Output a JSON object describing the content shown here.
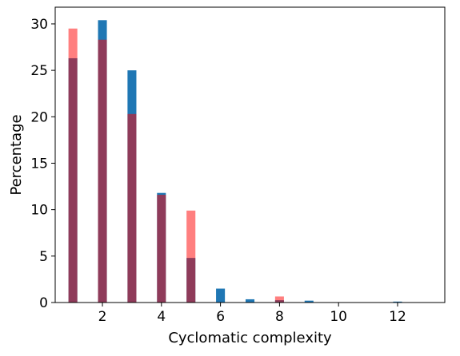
{
  "chart_data": {
    "type": "bar",
    "xlabel": "Cyclomatic complexity",
    "ylabel": "Percentage",
    "xlim": [
      0.4,
      13.6
    ],
    "ylim": [
      0,
      31.8
    ],
    "xticks": [
      2,
      4,
      6,
      8,
      10,
      12
    ],
    "yticks": [
      0,
      5,
      10,
      15,
      20,
      25,
      30
    ],
    "grid": false,
    "legend": "none",
    "bar_width": 0.3,
    "series": [
      {
        "color": "#1f77b4",
        "opacity": 1.0,
        "points": [
          {
            "x": 1,
            "y": 26.3
          },
          {
            "x": 2,
            "y": 30.4
          },
          {
            "x": 3,
            "y": 25.0
          },
          {
            "x": 4,
            "y": 11.8
          },
          {
            "x": 5,
            "y": 4.8
          },
          {
            "x": 6,
            "y": 1.5
          },
          {
            "x": 7,
            "y": 0.35
          },
          {
            "x": 8,
            "y": 0.25
          },
          {
            "x": 9,
            "y": 0.2
          },
          {
            "x": 12,
            "y": 0.1
          }
        ]
      },
      {
        "color": "#ff0000",
        "opacity": 0.5,
        "points": [
          {
            "x": 1,
            "y": 29.5
          },
          {
            "x": 2,
            "y": 28.3
          },
          {
            "x": 3,
            "y": 20.3
          },
          {
            "x": 4,
            "y": 11.6
          },
          {
            "x": 5,
            "y": 9.9
          },
          {
            "x": 8,
            "y": 0.65
          }
        ]
      }
    ]
  }
}
